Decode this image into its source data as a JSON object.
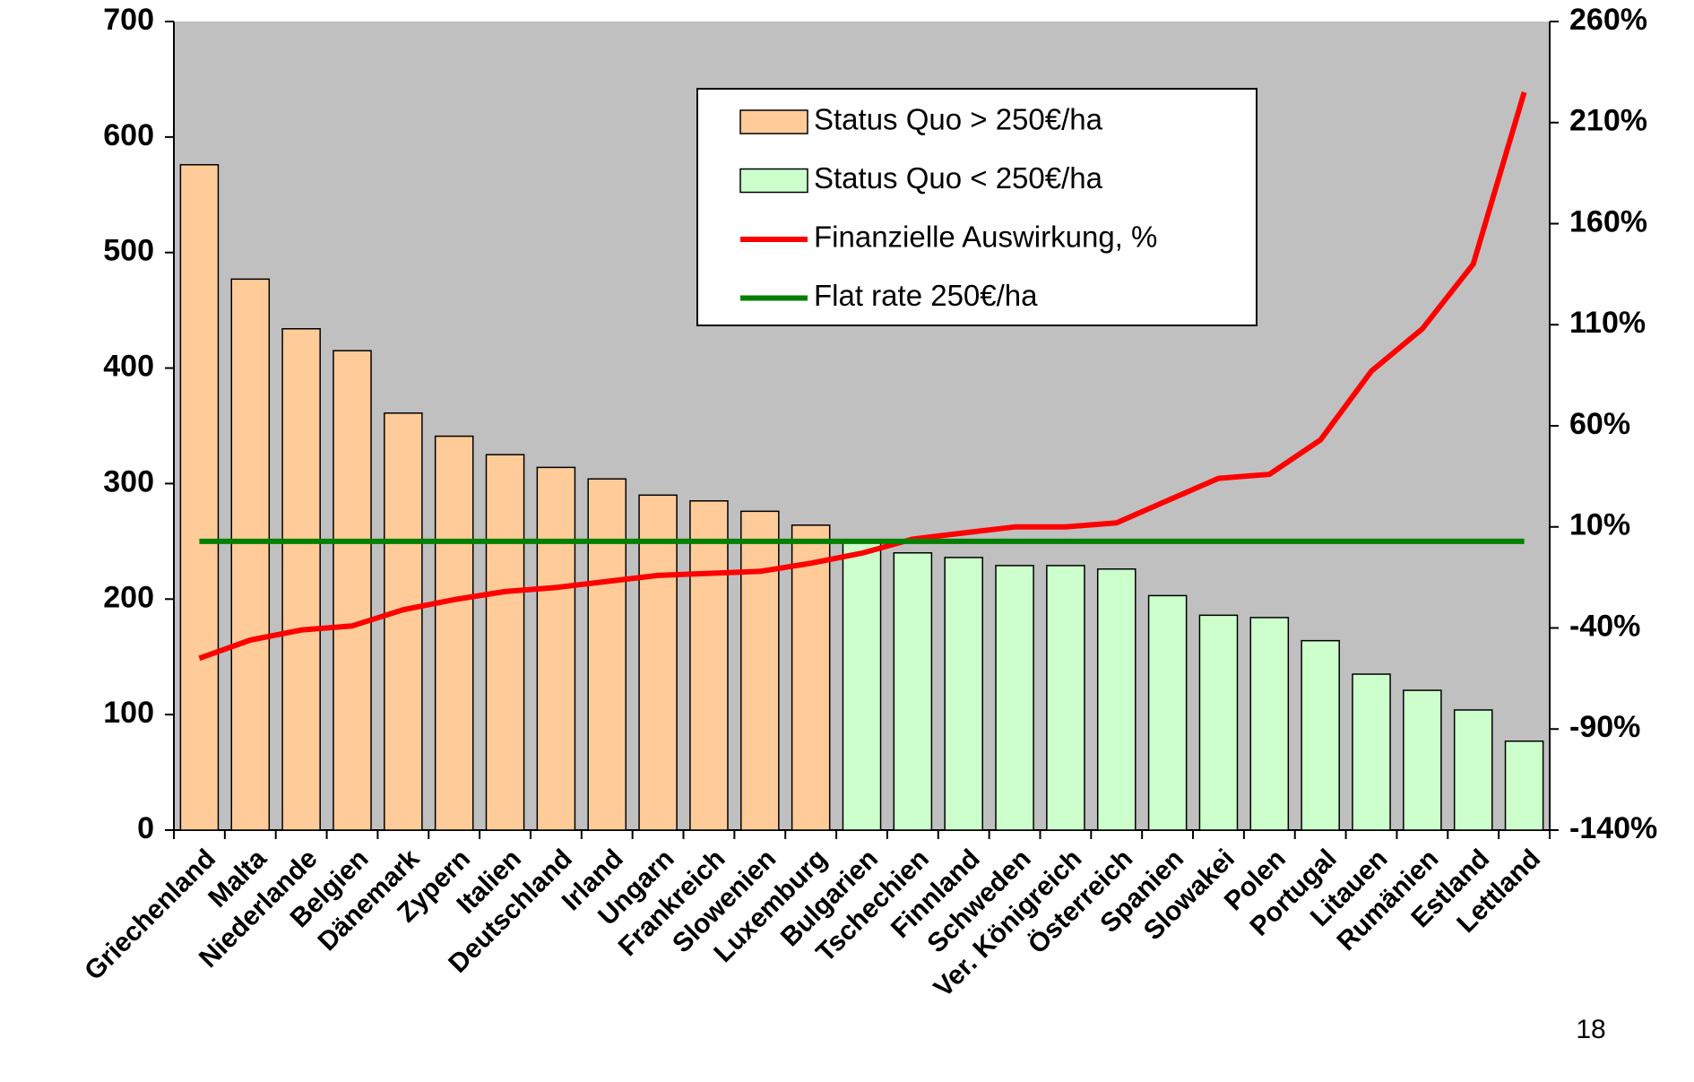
{
  "chart_data": {
    "type": "bar",
    "categories": [
      "Griechenland",
      "Malta",
      "Niederlande",
      "Belgien",
      "Dänemark",
      "Zypern",
      "Italien",
      "Deutschland",
      "Irland",
      "Ungarn",
      "Frankreich",
      "Slowenien",
      "Luxemburg",
      "Bulgarien",
      "Tschechien",
      "Finnland",
      "Schweden",
      "Ver. Königreich",
      "Österreich",
      "Spanien",
      "Slowakei",
      "Polen",
      "Portugal",
      "Litauen",
      "Rumänien",
      "Estland",
      "Lettland"
    ],
    "series": [
      {
        "name": "Status Quo > 250€/ha",
        "type": "bar",
        "axis": "y",
        "color": "#ffcc99",
        "values": [
          576,
          477,
          434,
          415,
          361,
          341,
          325,
          314,
          304,
          290,
          285,
          276,
          264,
          null,
          null,
          null,
          null,
          null,
          null,
          null,
          null,
          null,
          null,
          null,
          null,
          null,
          null
        ]
      },
      {
        "name": "Status Quo < 250€/ha",
        "type": "bar",
        "axis": "y",
        "color": "#ccffcc",
        "values": [
          null,
          null,
          null,
          null,
          null,
          null,
          null,
          null,
          null,
          null,
          null,
          null,
          null,
          250,
          240,
          236,
          229,
          229,
          226,
          203,
          186,
          184,
          164,
          135,
          121,
          104,
          77
        ]
      },
      {
        "name": "Finanzielle Auswirkung, %",
        "type": "line",
        "axis": "y2",
        "color": "#ff0000",
        "values": [
          -55,
          -46,
          -41,
          -39,
          -31,
          -26,
          -22,
          -20,
          -17,
          -14,
          -13,
          -12,
          -8,
          -3,
          4,
          7,
          10,
          10,
          12,
          23,
          34,
          36,
          53,
          87,
          108,
          140,
          225
        ]
      },
      {
        "name": "Flat rate 250€/ha",
        "type": "line",
        "axis": "y",
        "color": "#008000",
        "values": [
          250,
          250,
          250,
          250,
          250,
          250,
          250,
          250,
          250,
          250,
          250,
          250,
          250,
          250,
          250,
          250,
          250,
          250,
          250,
          250,
          250,
          250,
          250,
          250,
          250,
          250,
          250
        ]
      }
    ],
    "ylim": [
      0,
      700
    ],
    "yticks": [
      0,
      100,
      200,
      300,
      400,
      500,
      600,
      700
    ],
    "y2lim": [
      -140,
      260
    ],
    "y2ticks": [
      {
        "value": -140,
        "label": "-140%"
      },
      {
        "value": -90,
        "label": "-90%"
      },
      {
        "value": -40,
        "label": "-40%"
      },
      {
        "value": 10,
        "label": "10%"
      },
      {
        "value": 60,
        "label": "60%"
      },
      {
        "value": 110,
        "label": "110%"
      },
      {
        "value": 160,
        "label": "160%"
      },
      {
        "value": 210,
        "label": "210%"
      },
      {
        "value": 260,
        "label": "260%"
      }
    ],
    "plot_background": "#c0c0c0",
    "page_number": "18"
  }
}
